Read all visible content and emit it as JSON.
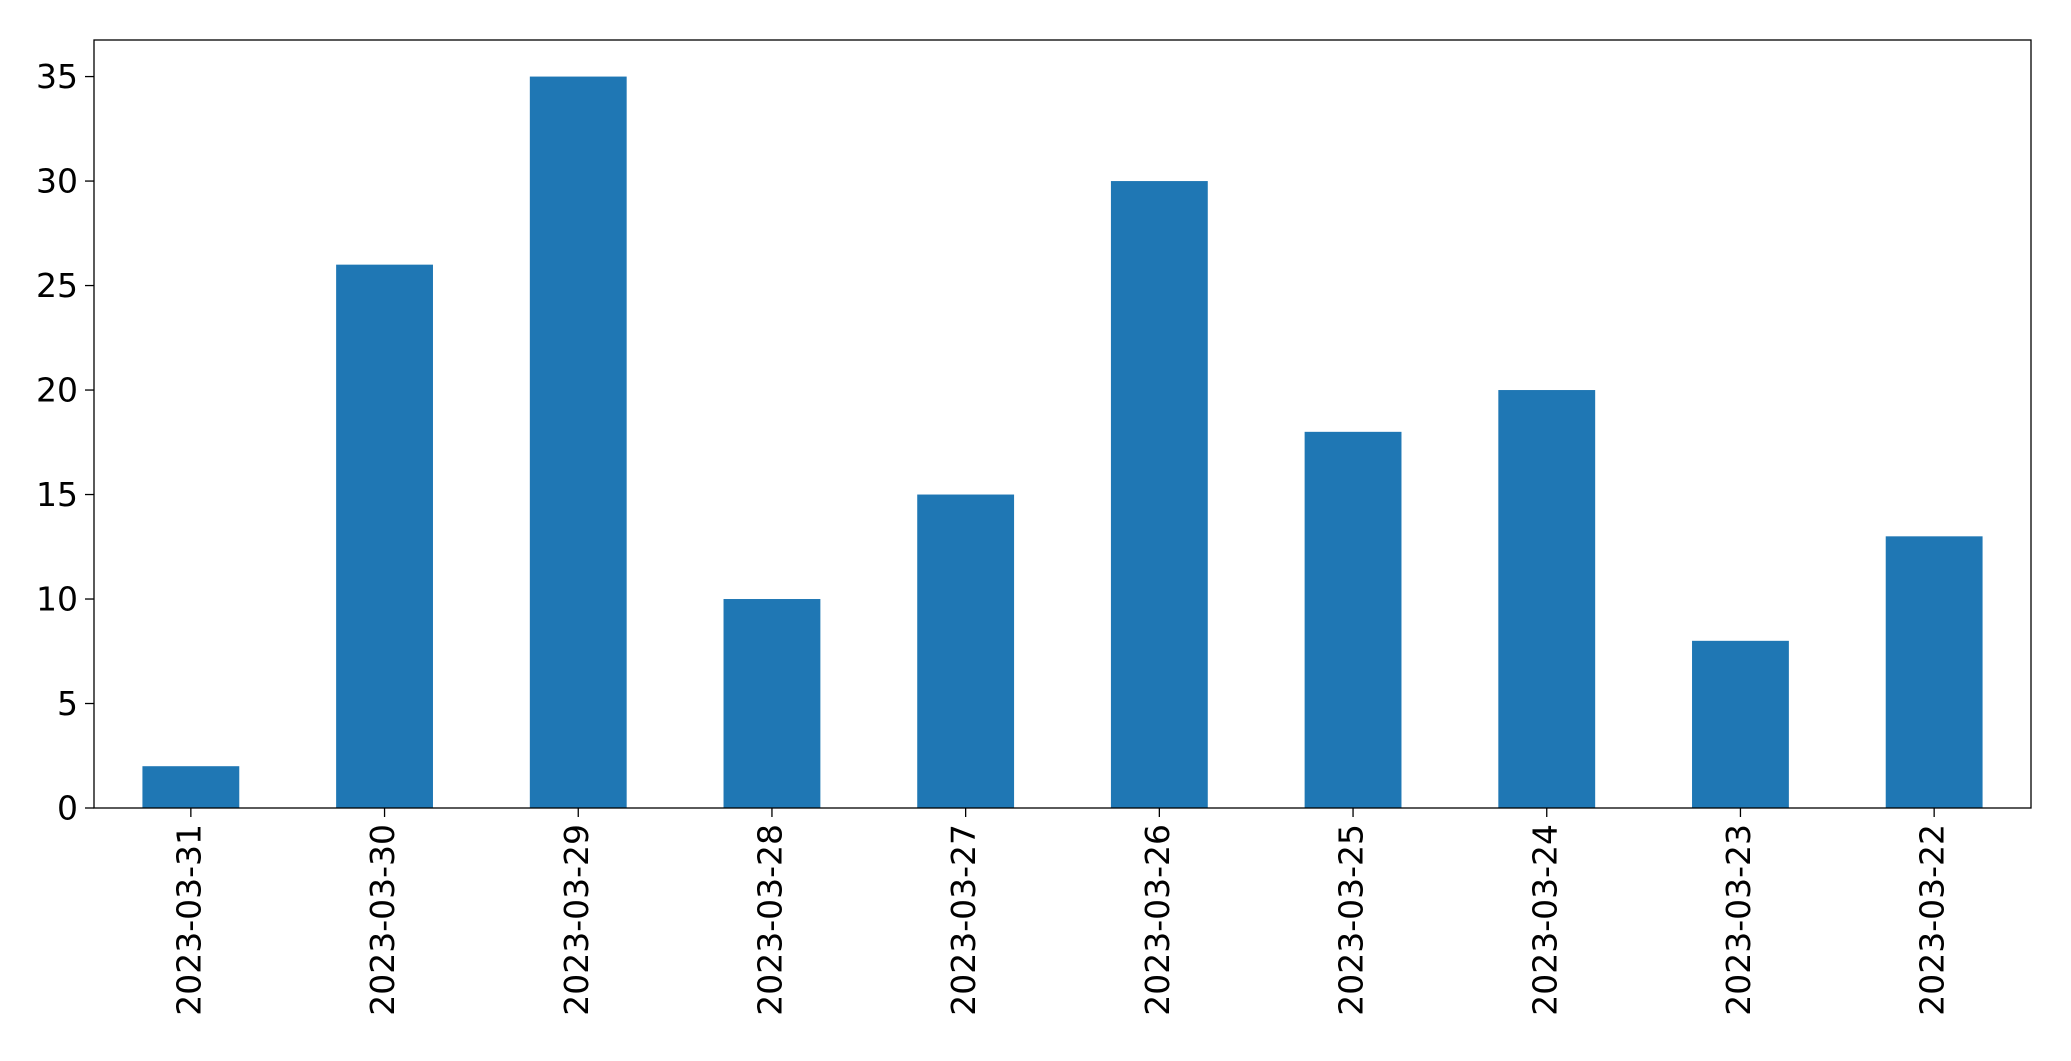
{
  "chart_data": {
    "type": "bar",
    "categories": [
      "2023-03-31",
      "2023-03-30",
      "2023-03-29",
      "2023-03-28",
      "2023-03-27",
      "2023-03-26",
      "2023-03-25",
      "2023-03-24",
      "2023-03-23",
      "2023-03-22"
    ],
    "values": [
      2,
      26,
      35,
      10,
      15,
      30,
      18,
      20,
      8,
      13
    ],
    "color": "#1f77b4",
    "ylim": [
      0,
      36.75
    ],
    "yticks": [
      0,
      5,
      10,
      15,
      20,
      25,
      30,
      35
    ],
    "grid": false
  }
}
